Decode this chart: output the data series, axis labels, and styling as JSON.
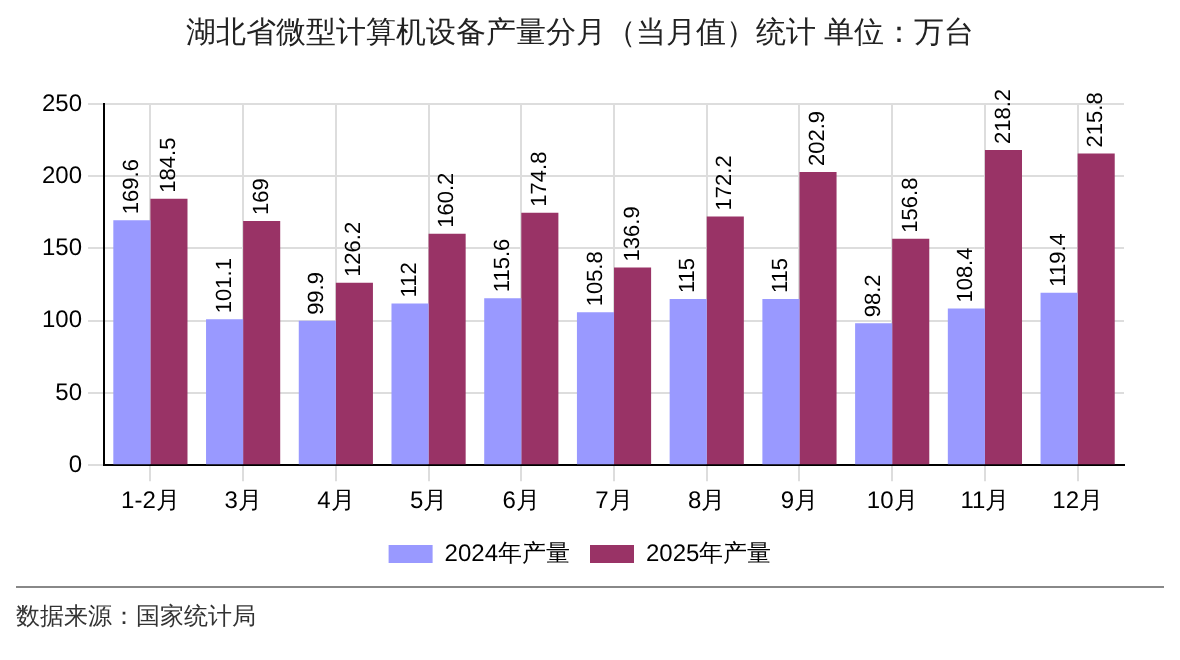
{
  "chart_data": {
    "type": "bar",
    "title": "湖北省微型计算机设备产量分月（当月值）统计 单位：万台",
    "categories": [
      "1-2月",
      "3月",
      "4月",
      "5月",
      "6月",
      "7月",
      "8月",
      "9月",
      "10月",
      "11月",
      "12月"
    ],
    "series": [
      {
        "name": "2024年产量",
        "color": "#9999ff",
        "values": [
          169.6,
          101.1,
          99.9,
          112,
          115.6,
          105.8,
          115,
          115,
          98.2,
          108.4,
          119.4
        ]
      },
      {
        "name": "2025年产量",
        "color": "#993366",
        "values": [
          184.5,
          169,
          126.2,
          160.2,
          174.8,
          136.9,
          172.2,
          202.9,
          156.8,
          218.2,
          215.8
        ]
      }
    ],
    "ylim": [
      0,
      250
    ],
    "yticks": [
      0,
      50,
      100,
      150,
      200,
      250
    ],
    "grid": true,
    "legend": "bottom",
    "data_labels": true,
    "annotations": [
      "数据来源：国家统计局"
    ]
  }
}
